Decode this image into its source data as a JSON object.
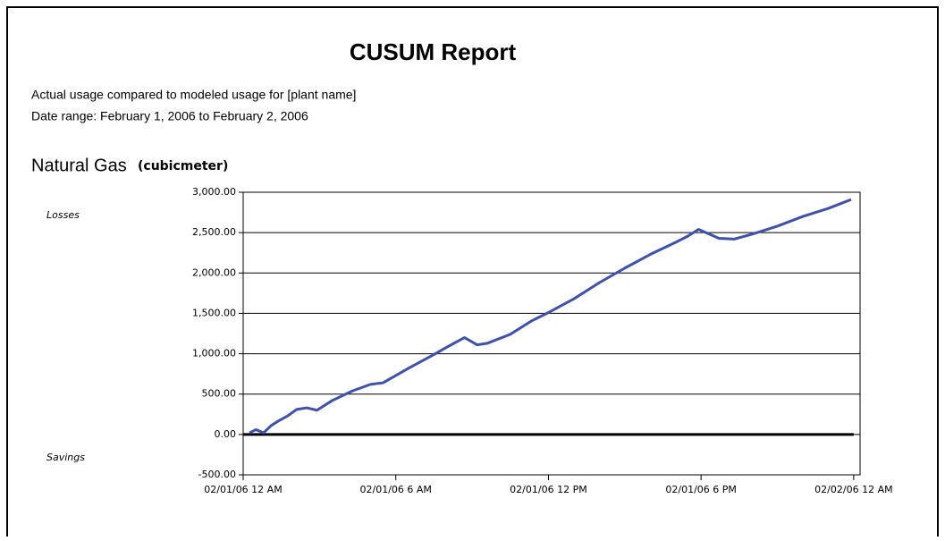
{
  "chart_data": {
    "type": "line",
    "title": "CUSUM Report",
    "subtitle": [
      "Actual usage compared to modeled usage for [plant name]",
      "Date range: February 1, 2006 to February 2, 2006"
    ],
    "chart_title": "Natural Gas",
    "unit": "(cubicmeter)",
    "annotations": [
      "Losses",
      "Savings"
    ],
    "x": [
      0.25,
      0.5,
      0.8,
      1.1,
      1.4,
      1.75,
      2.1,
      2.5,
      2.9,
      3.5,
      4.3,
      5,
      5.5,
      6.5,
      7.5,
      8,
      8.7,
      9.2,
      9.6,
      10.5,
      11.3,
      12,
      13,
      14,
      15,
      16,
      17,
      17.5,
      17.9,
      18.7,
      19.3,
      20,
      21,
      22,
      23,
      23.9
    ],
    "series": [
      {
        "name": "CUSUM",
        "color": "#3f51a8",
        "values": [
          20,
          60,
          20,
          110,
          170,
          230,
          310,
          330,
          300,
          420,
          540,
          620,
          640,
          820,
          990,
          1080,
          1200,
          1110,
          1130,
          1240,
          1400,
          1510,
          1680,
          1880,
          2060,
          2230,
          2380,
          2460,
          2540,
          2430,
          2420,
          2480,
          2580,
          2700,
          2800,
          2910
        ]
      }
    ],
    "xlim": [
      0,
      24.25
    ],
    "xticks": [
      {
        "value": 0,
        "label": "02/01/06 12 AM"
      },
      {
        "value": 6,
        "label": "02/01/06 6 AM"
      },
      {
        "value": 12,
        "label": "02/01/06 12 PM"
      },
      {
        "value": 18,
        "label": "02/01/06 6 PM"
      },
      {
        "value": 24,
        "label": "02/02/06 12 AM"
      }
    ],
    "ylim": [
      -500,
      3000
    ],
    "yticks": [
      {
        "value": -500,
        "label": "-500.00"
      },
      {
        "value": 0,
        "label": "0.00"
      },
      {
        "value": 500,
        "label": "500.00"
      },
      {
        "value": 1000,
        "label": "1,000.00"
      },
      {
        "value": 1500,
        "label": "1,500.00"
      },
      {
        "value": 2000,
        "label": "2,000.00"
      },
      {
        "value": 2500,
        "label": "2,500.00"
      },
      {
        "value": 3000,
        "label": "3,000.00"
      }
    ],
    "grid": true
  }
}
